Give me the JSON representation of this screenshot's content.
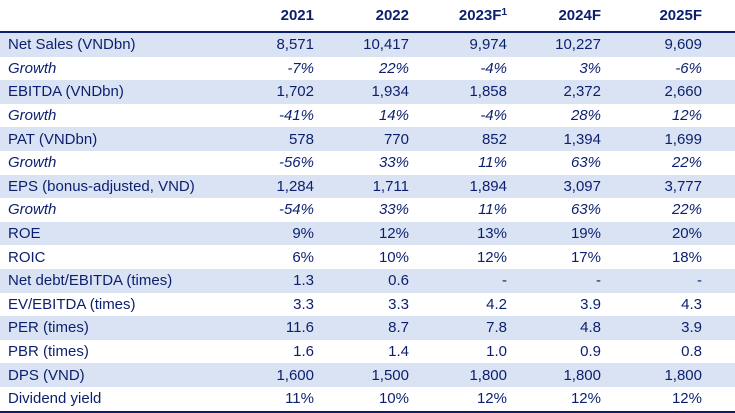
{
  "columns": [
    "2021",
    "2022",
    "2023F",
    "2024F",
    "2025F"
  ],
  "footnote_marker": "1",
  "rows": [
    {
      "label": "Net Sales (VNDbn)",
      "values": [
        "8,571",
        "10,417",
        "9,974",
        "10,227",
        "9,609"
      ],
      "shaded": true,
      "italic": false
    },
    {
      "label": "Growth",
      "values": [
        "-7%",
        "22%",
        "-4%",
        "3%",
        "-6%"
      ],
      "shaded": false,
      "italic": true
    },
    {
      "label": "EBITDA (VNDbn)",
      "values": [
        "1,702",
        "1,934",
        "1,858",
        "2,372",
        "2,660"
      ],
      "shaded": true,
      "italic": false
    },
    {
      "label": "Growth",
      "values": [
        "-41%",
        "14%",
        "-4%",
        "28%",
        "12%"
      ],
      "shaded": false,
      "italic": true
    },
    {
      "label": "PAT (VNDbn)",
      "values": [
        "578",
        "770",
        "852",
        "1,394",
        "1,699"
      ],
      "shaded": true,
      "italic": false
    },
    {
      "label": "Growth",
      "values": [
        "-56%",
        "33%",
        "11%",
        "63%",
        "22%"
      ],
      "shaded": false,
      "italic": true
    },
    {
      "label": "EPS (bonus-adjusted, VND)",
      "values": [
        "1,284",
        "1,711",
        "1,894",
        "3,097",
        "3,777"
      ],
      "shaded": true,
      "italic": false
    },
    {
      "label": "Growth",
      "values": [
        "-54%",
        "33%",
        "11%",
        "63%",
        "22%"
      ],
      "shaded": false,
      "italic": true
    },
    {
      "label": "ROE",
      "values": [
        "9%",
        "12%",
        "13%",
        "19%",
        "20%"
      ],
      "shaded": true,
      "italic": false
    },
    {
      "label": "ROIC",
      "values": [
        "6%",
        "10%",
        "12%",
        "17%",
        "18%"
      ],
      "shaded": false,
      "italic": false
    },
    {
      "label": "Net debt/EBITDA (times)",
      "values": [
        "1.3",
        "0.6",
        "-",
        "-",
        "-"
      ],
      "shaded": true,
      "italic": false
    },
    {
      "label": "EV/EBITDA (times)",
      "values": [
        "3.3",
        "3.3",
        "4.2",
        "3.9",
        "4.3"
      ],
      "shaded": false,
      "italic": false
    },
    {
      "label": "PER (times)",
      "values": [
        "11.6",
        "8.7",
        "7.8",
        "4.8",
        "3.9"
      ],
      "shaded": true,
      "italic": false
    },
    {
      "label": "PBR (times)",
      "values": [
        "1.6",
        "1.4",
        "1.0",
        "0.9",
        "0.8"
      ],
      "shaded": false,
      "italic": false
    },
    {
      "label": "DPS (VND)",
      "values": [
        "1,600",
        "1,500",
        "1,800",
        "1,800",
        "1,800"
      ],
      "shaded": true,
      "italic": false
    },
    {
      "label": "Dividend yield",
      "values": [
        "11%",
        "10%",
        "12%",
        "12%",
        "12%"
      ],
      "shaded": false,
      "italic": false
    }
  ],
  "colors": {
    "text": "#0b1f6e",
    "shade": "#dae3f3",
    "rule": "#0b1f6e"
  }
}
